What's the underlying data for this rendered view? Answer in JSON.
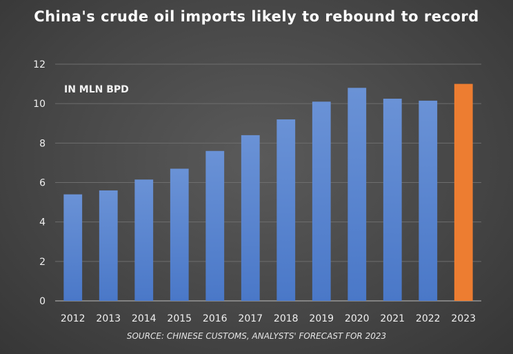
{
  "chart_data": {
    "type": "bar",
    "title": "China's crude oil imports likely to rebound to record",
    "unit_label": "IN MLN BPD",
    "source": "SOURCE: CHINESE CUSTOMS, ANALYSTS' FORECAST FOR 2023",
    "categories": [
      "2012",
      "2013",
      "2014",
      "2015",
      "2016",
      "2017",
      "2018",
      "2019",
      "2020",
      "2021",
      "2022",
      "2023"
    ],
    "values": [
      5.4,
      5.6,
      6.15,
      6.7,
      7.6,
      8.4,
      9.2,
      10.1,
      10.8,
      10.25,
      10.15,
      11.0
    ],
    "ylim": [
      0,
      12
    ],
    "yticks": [
      0,
      2,
      4,
      6,
      8,
      10,
      12
    ],
    "xlabel": "",
    "ylabel": "",
    "grid": true,
    "colors": {
      "bar": "#4a78c8",
      "bar_top": "#6a92d6",
      "highlight": "#ed7d31",
      "gridline": "#6e6e6e",
      "axis": "#bfbfbf"
    },
    "highlight_category": "2023"
  }
}
